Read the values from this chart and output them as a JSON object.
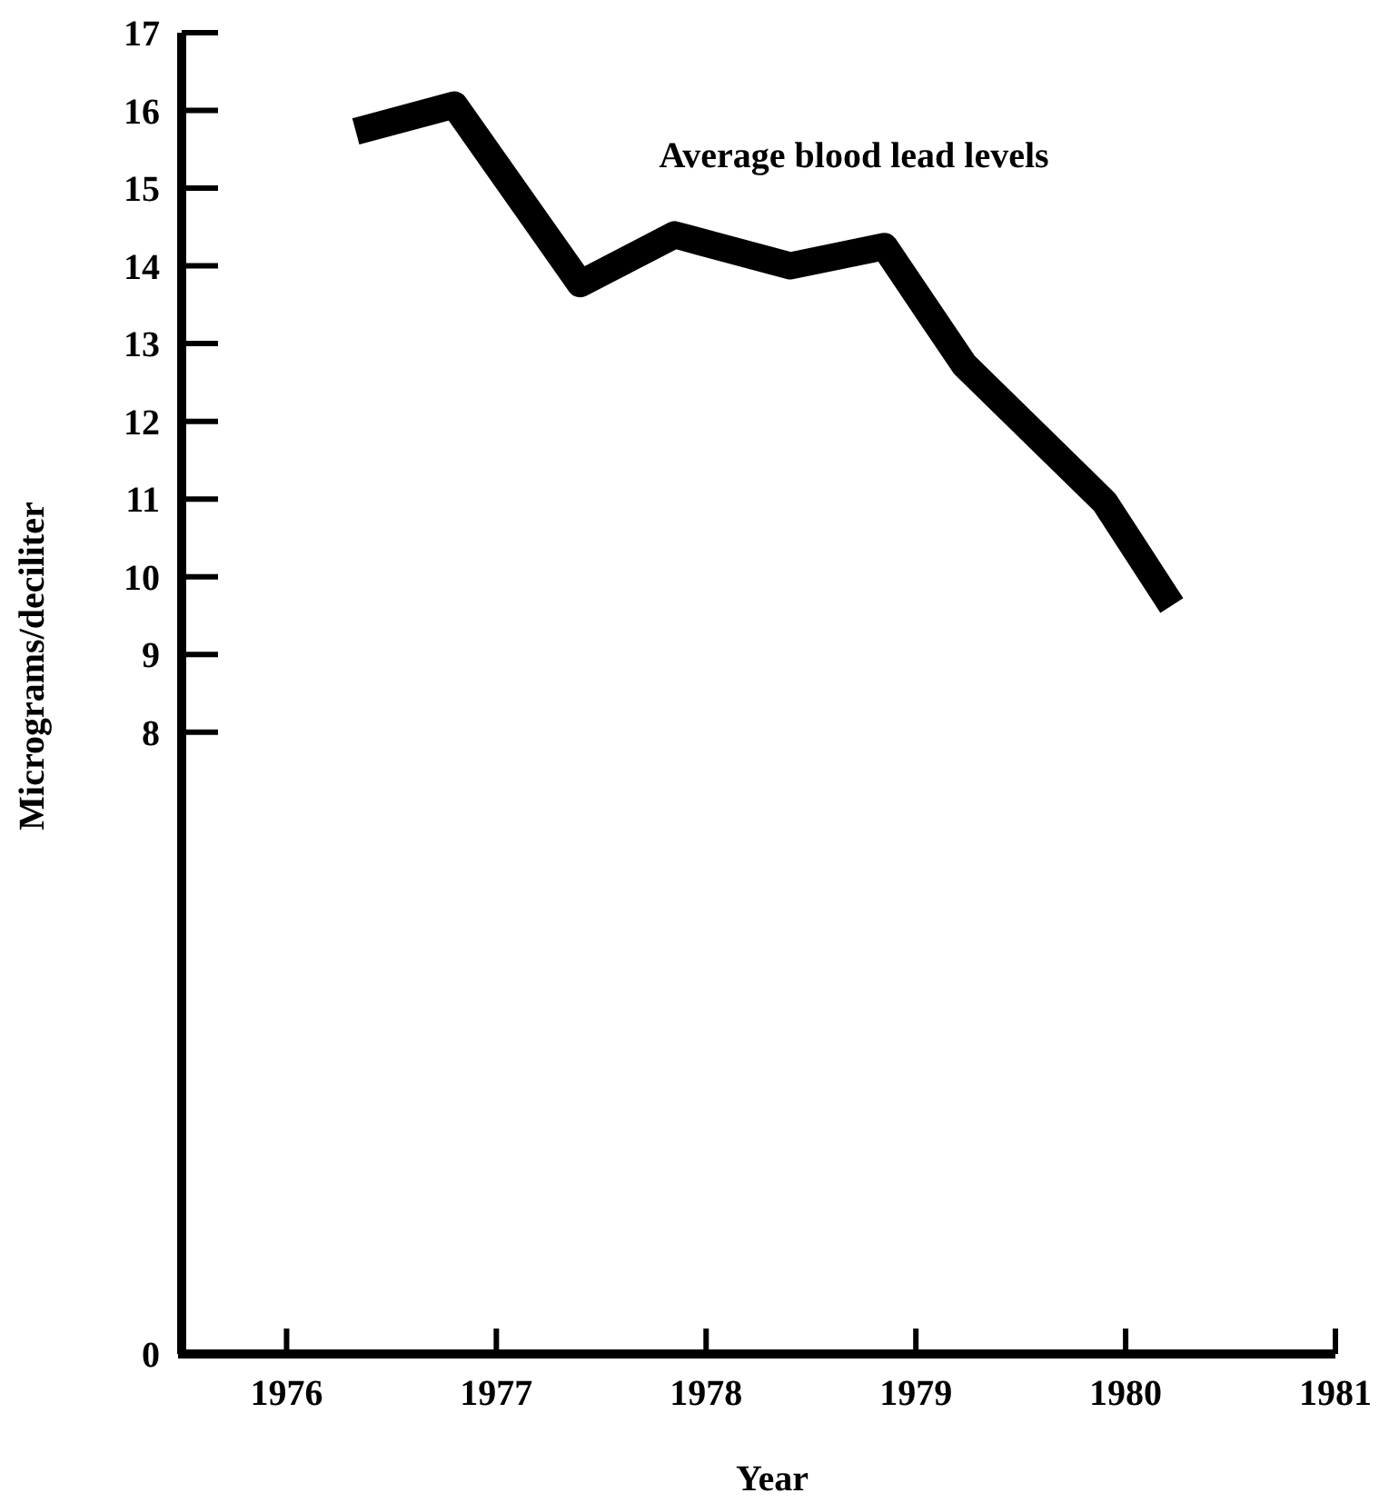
{
  "chart_data": {
    "type": "line",
    "xlabel": "Year",
    "ylabel": "Micrograms/deciliter",
    "annotations": [
      "Average blood lead levels"
    ],
    "x": [
      1976.33,
      1976.8,
      1977.4,
      1977.85,
      1978.4,
      1978.85,
      1979.23,
      1979.9,
      1980.22
    ],
    "series": [
      {
        "color": "#000000",
        "values": [
          15.73,
          16.07,
          13.77,
          14.4,
          14.0,
          14.25,
          12.73,
          10.96,
          9.63
        ]
      }
    ],
    "xlim": [
      1975.5,
      1981
    ],
    "xticks": [
      1976,
      1977,
      1978,
      1979,
      1980,
      1981
    ],
    "ylim": [
      0,
      17
    ],
    "yticks": [
      0,
      8,
      9,
      10,
      11,
      12,
      13,
      14,
      15,
      16,
      17
    ],
    "grid": false,
    "marker": "none",
    "line_style": "solid"
  }
}
